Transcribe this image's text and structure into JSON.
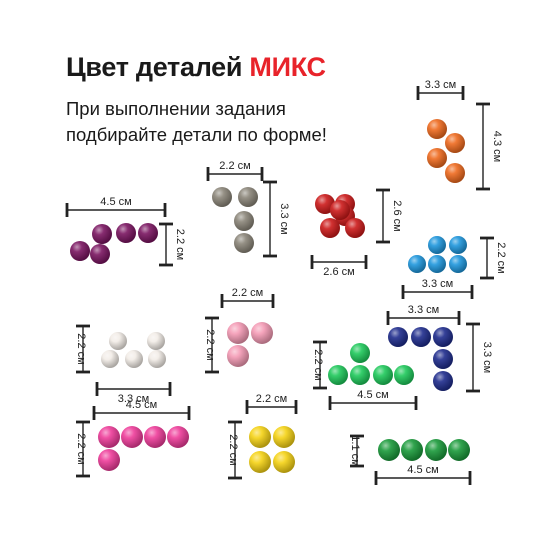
{
  "title": {
    "prefix": "Цвет деталей",
    "accent": "МИКС"
  },
  "subtitle": {
    "line1": "При выполнении задания",
    "line2": "подбирайте детали по форме!"
  },
  "colors": {
    "accent": "#e8232a",
    "purple": "#7a1460",
    "gray": "#8a8578",
    "red": "#cc1a1a",
    "orange": "#ee6a1e",
    "lightblue": "#1e96dc",
    "cream": "#f2ece6",
    "pink": "#f49ab4",
    "navy": "#1e2c8c",
    "green": "#1ec85a",
    "magenta": "#ee3c9a",
    "yellow": "#f5d214",
    "darkgreen": "#1a9a3a"
  },
  "labels": {
    "orange_w": "3.3 см",
    "orange_h": "4.3 см",
    "gray_w": "2.2 см",
    "gray_h": "3.3 см",
    "red_w": "2.6 см",
    "red_h": "2.6 см",
    "purple_w": "4.5 см",
    "purple_h": "2.2 см",
    "lightblue_w": "3.3 см",
    "lightblue_h": "2.2 см",
    "pink_w": "2.2 см",
    "pink_h": "2.2 см",
    "cream_w": "3.3 см",
    "cream_h": "2.2 см",
    "navy_w": "3.3 см",
    "navy_h": "3.3 см",
    "green_w": "4.5 см",
    "green_h": "2.2 см",
    "magenta_w": "4.5 см",
    "magenta_h": "2.2 см",
    "yellow_w": "2.2 см",
    "yellow_h": "2.2 см",
    "darkgreen_w": "4.5 см",
    "darkgreen_h": "1.1 см"
  }
}
